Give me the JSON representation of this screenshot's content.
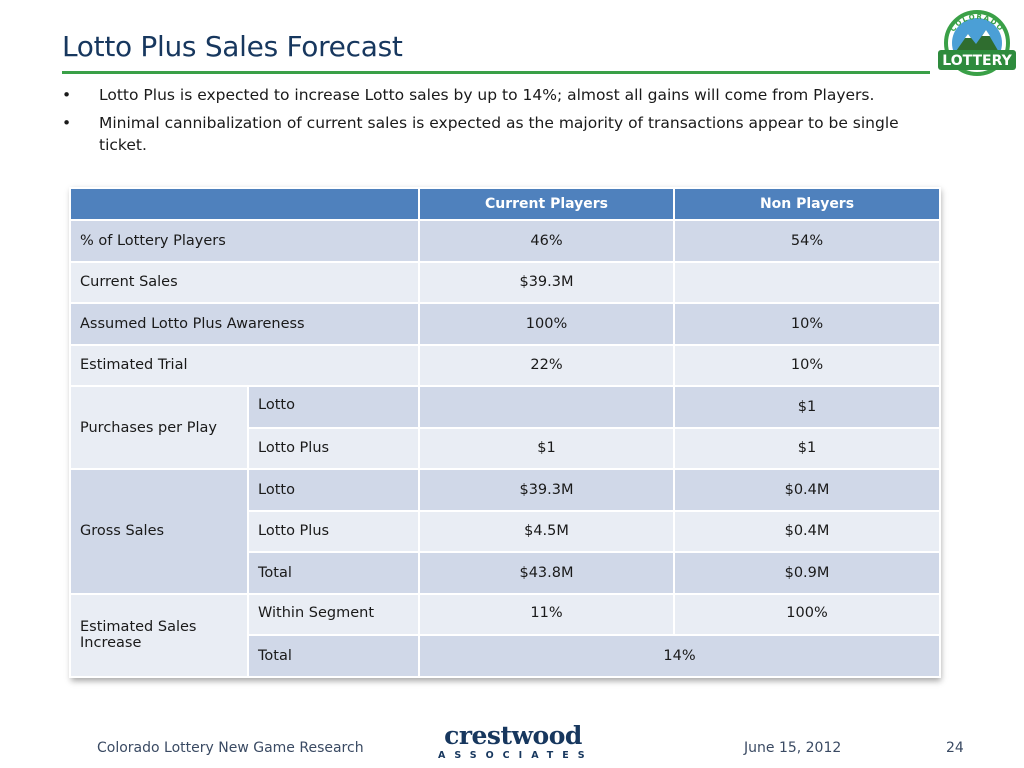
{
  "slide": {
    "title": "Lotto Plus Sales Forecast",
    "bullets": [
      "Lotto Plus is expected to increase Lotto sales by up to 14%; almost all gains will come from Players.",
      "Minimal cannibalization of current sales is expected as the majority of transactions appear to be single ticket."
    ],
    "bullet_glyph": "•"
  },
  "logo": {
    "arc_text": "COLORADO",
    "word": "LOTTERY"
  },
  "table": {
    "headers": [
      "",
      "Current Players",
      "Non Players"
    ],
    "rows": {
      "pct_players": {
        "label": "% of Lottery Players",
        "current": "46%",
        "non": "54%"
      },
      "current_sales": {
        "label": "Current Sales",
        "current": "$39.3M",
        "non": ""
      },
      "awareness": {
        "label": "Assumed Lotto Plus Awareness",
        "current": "100%",
        "non": "10%"
      },
      "trial": {
        "label": "Estimated Trial",
        "current": "22%",
        "non": "10%"
      },
      "purchases": {
        "label": "Purchases per Play",
        "lotto": {
          "label": "Lotto",
          "current": "",
          "non": "$1"
        },
        "lotto_plus": {
          "label": "Lotto Plus",
          "current": "$1",
          "non": "$1"
        }
      },
      "gross": {
        "label": "Gross Sales",
        "lotto": {
          "label": "Lotto",
          "current": "$39.3M",
          "non": "$0.4M"
        },
        "lotto_plus": {
          "label": "Lotto Plus",
          "current": "$4.5M",
          "non": "$0.4M"
        },
        "total": {
          "label": "Total",
          "current": "$43.8M",
          "non": "$0.9M"
        }
      },
      "increase": {
        "label": "Estimated Sales Increase",
        "within": {
          "label": "Within Segment",
          "current": "11%",
          "non": "100%"
        },
        "total": {
          "label": "Total",
          "value": "14%"
        }
      }
    }
  },
  "footer": {
    "left": "Colorado Lottery New Game Research",
    "brand_name": "crestwood",
    "brand_sub": "ASSOCIATES",
    "date": "June 15, 2012",
    "page": "24"
  },
  "colors": {
    "title": "#17375e",
    "rule": "#3aa047",
    "header": "#4f81bd",
    "row_dark": "#d0d8e8",
    "row_light": "#e9edf4"
  }
}
